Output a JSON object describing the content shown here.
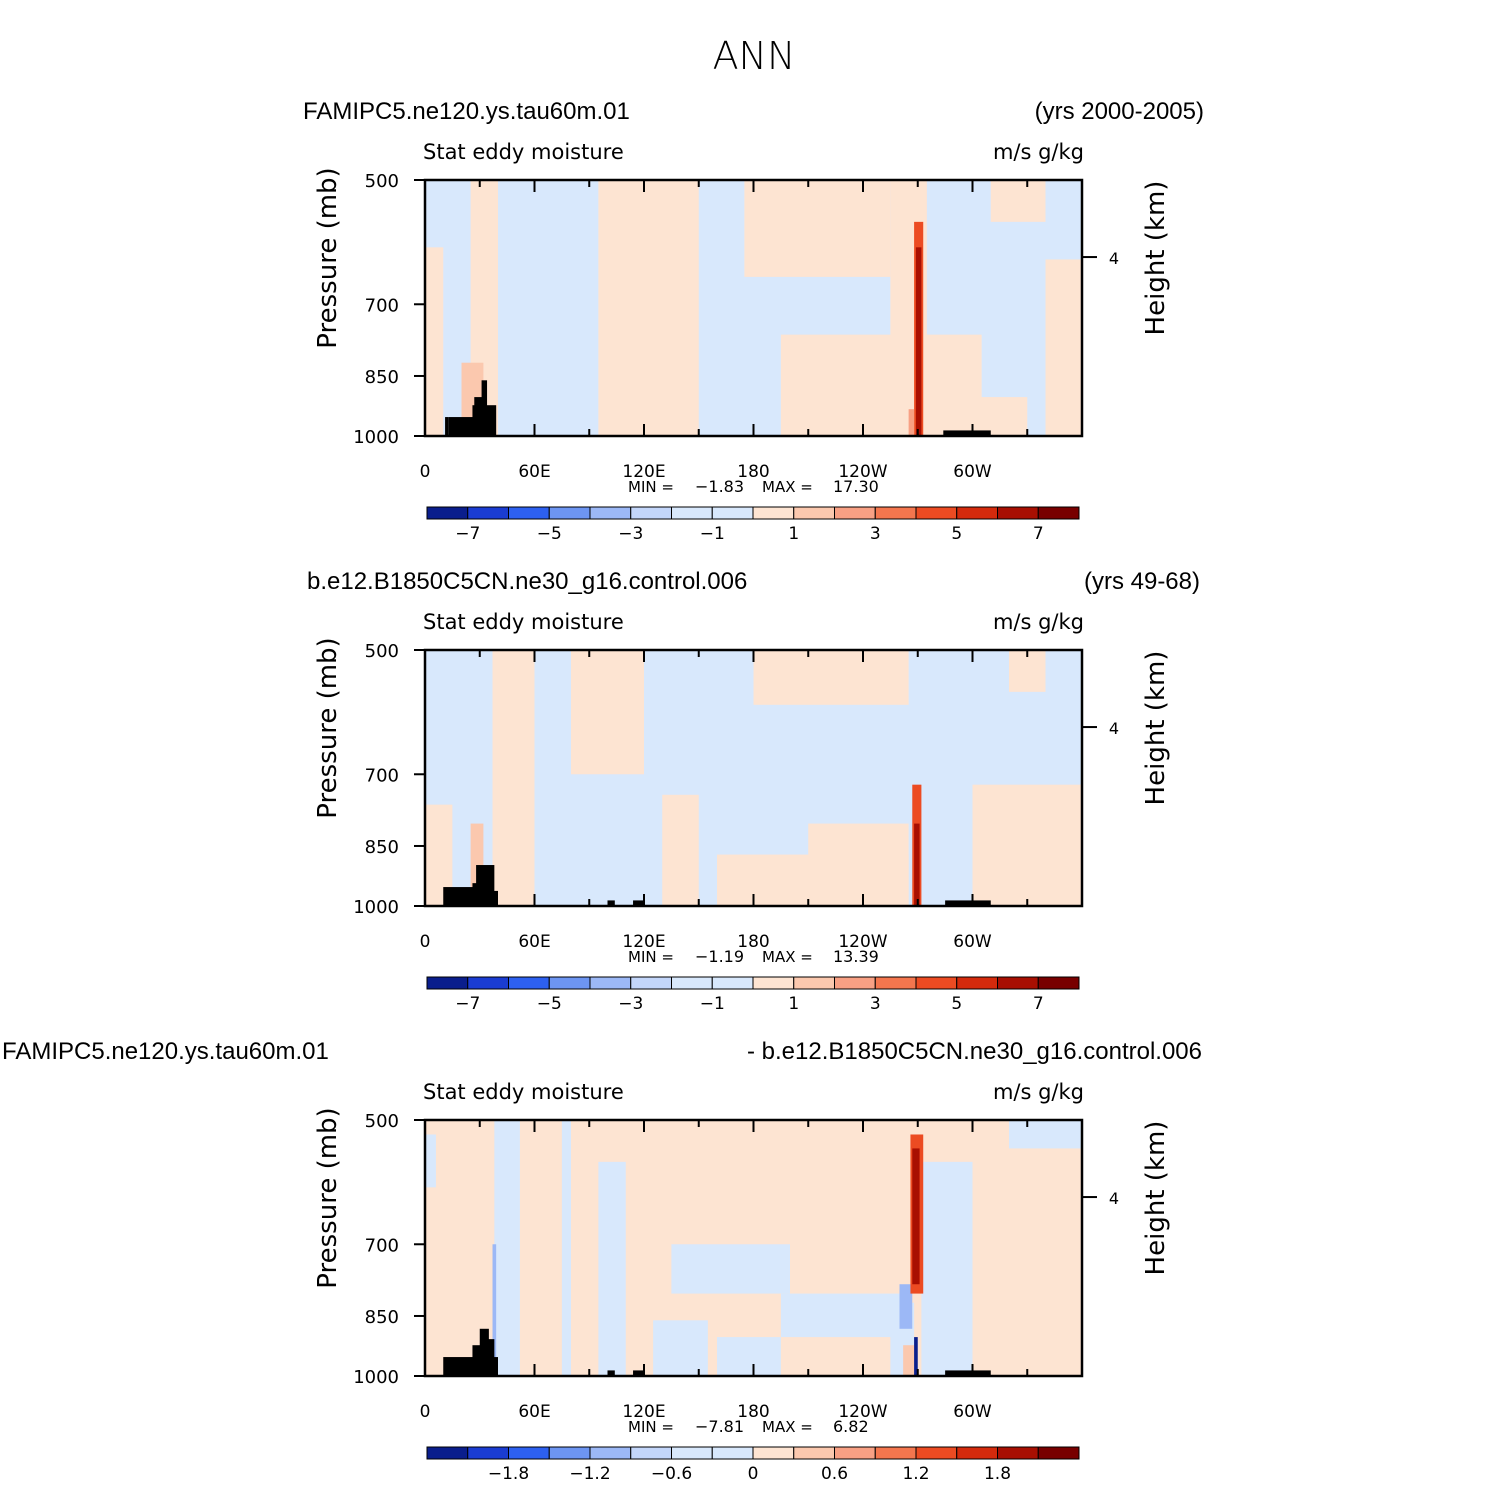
{
  "figure_title": "ANN",
  "colors": {
    "dark_blue": "#0a1e8c",
    "mid_blue": "#1a3cd2",
    "blue": "#2d60f0",
    "light_blue_1": "#6d95f2",
    "light_blue_2": "#9cb8f6",
    "light_blue_3": "#c3d6fa",
    "pale_blue": "#d8e8fc",
    "pale_orange": "#fde4d2",
    "light_orange": "#fbc8ae",
    "orange_1": "#f8a084",
    "orange_2": "#f4764e",
    "red_orange": "#ec4b22",
    "red": "#d42a0c",
    "dark_red": "#a80f02",
    "maroon": "#780000",
    "land_mask": "#000000"
  },
  "chart_data": [
    {
      "type": "heatmap",
      "case_left": "FAMIPC5.ne120.ys.tau60m.01",
      "case_right": "(yrs 2000-2005)",
      "subtitle_left": "Stat eddy moisture",
      "units": "m/s g/kg",
      "ylabel": "Pressure (mb)",
      "ylabel_right": "Height (km)",
      "y_ticks": [
        "500",
        "700",
        "850",
        "1000"
      ],
      "y_right_ticks": [
        "4"
      ],
      "x_ticks": [
        "0",
        "60E",
        "120E",
        "180",
        "120W",
        "60W"
      ],
      "min_label": "MIN =",
      "min_value": "−1.83",
      "max_label": "MAX =",
      "max_value": "17.30",
      "colorbar_labels": [
        "−7",
        "−5",
        "−3",
        "−1",
        "1",
        "3",
        "5",
        "7"
      ],
      "colorbar_levels": [
        -8,
        -7,
        -6,
        -5,
        -4,
        -3,
        -2,
        -1,
        0,
        1,
        2,
        3,
        4,
        5,
        6,
        7,
        8
      ]
    },
    {
      "type": "heatmap",
      "case_left": "b.e12.B1850C5CN.ne30_g16.control.006",
      "case_right": "(yrs 49-68)",
      "subtitle_left": "Stat eddy moisture",
      "units": "m/s g/kg",
      "ylabel": "Pressure (mb)",
      "ylabel_right": "Height (km)",
      "y_ticks": [
        "500",
        "700",
        "850",
        "1000"
      ],
      "y_right_ticks": [
        "4"
      ],
      "x_ticks": [
        "0",
        "60E",
        "120E",
        "180",
        "120W",
        "60W"
      ],
      "min_label": "MIN =",
      "min_value": "−1.19",
      "max_label": "MAX =",
      "max_value": "13.39",
      "colorbar_labels": [
        "−7",
        "−5",
        "−3",
        "−1",
        "1",
        "3",
        "5",
        "7"
      ],
      "colorbar_levels": [
        -8,
        -7,
        -6,
        -5,
        -4,
        -3,
        -2,
        -1,
        0,
        1,
        2,
        3,
        4,
        5,
        6,
        7,
        8
      ]
    },
    {
      "type": "heatmap",
      "case_left": "FAMIPC5.ne120.ys.tau60m.01",
      "case_right": "- b.e12.B1850C5CN.ne30_g16.control.006",
      "subtitle_left": "Stat eddy moisture",
      "units": "m/s g/kg",
      "ylabel": "Pressure (mb)",
      "ylabel_right": "Height (km)",
      "y_ticks": [
        "500",
        "700",
        "850",
        "1000"
      ],
      "y_right_ticks": [
        "4"
      ],
      "x_ticks": [
        "0",
        "60E",
        "120E",
        "180",
        "120W",
        "60W"
      ],
      "min_label": "MIN =",
      "min_value": "−7.81",
      "max_label": "MAX =",
      "max_value": "6.82",
      "colorbar_labels": [
        "−1.8",
        "−1.2",
        "−0.6",
        "0",
        "0.6",
        "1.2",
        "1.8"
      ],
      "colorbar_levels": [
        -2.4,
        -2.1,
        -1.8,
        -1.5,
        -1.2,
        -0.9,
        -0.6,
        -0.3,
        0,
        0.3,
        0.6,
        0.9,
        1.2,
        1.5,
        1.8,
        2.1,
        2.4
      ]
    }
  ]
}
